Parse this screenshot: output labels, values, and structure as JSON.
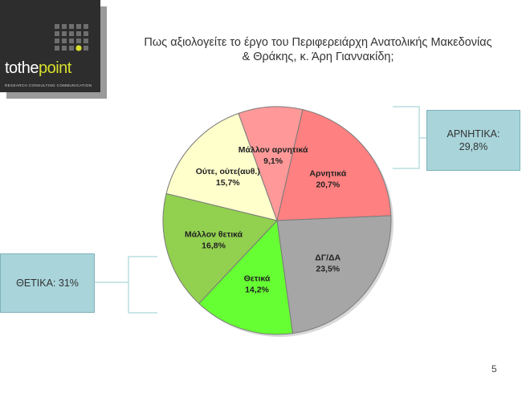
{
  "logo": {
    "brand_prefix": "tothe",
    "brand_suffix": "point",
    "tagline": "RESEARCH  CONSULTING  COMMUNICATION"
  },
  "title": {
    "line1": "Πως αξιολογείτε το έργο του Περιφερειάρχη Ανατολικής Μακεδονίας",
    "line2": "& Θράκης, κ. Άρη Γιαννακίδη;"
  },
  "summary": {
    "negative_label": "ΑΡΝΗΤΙΚΑ:",
    "negative_value": "29,8%",
    "positive_text": "ΘΕΤΙΚΑ: 31%"
  },
  "page_number": "5",
  "chart_data": {
    "type": "pie",
    "slices": [
      {
        "label": "Αρνητικά",
        "value": 20.7,
        "value_label": "20,7%",
        "color": "#ff8080"
      },
      {
        "label": "ΔΓ/ΔΑ",
        "value": 23.5,
        "value_label": "23,5%",
        "color": "#a6a6a6"
      },
      {
        "label": "Θετικά",
        "value": 14.2,
        "value_label": "14,2%",
        "color": "#66ff33"
      },
      {
        "label": "Μάλλον θετικά",
        "value": 16.8,
        "value_label": "16,8%",
        "color": "#92d050"
      },
      {
        "label": "Ούτε, ούτε(αυθ.)",
        "value": 15.7,
        "value_label": "15,7%",
        "color": "#ffffcc"
      },
      {
        "label": "Μάλλον αρνητικά",
        "value": 9.1,
        "value_label": "9,1%",
        "color": "#ff9999"
      }
    ],
    "colors": {
      "outline": "#7a7a7a",
      "bracket": "#b9dde1"
    }
  }
}
